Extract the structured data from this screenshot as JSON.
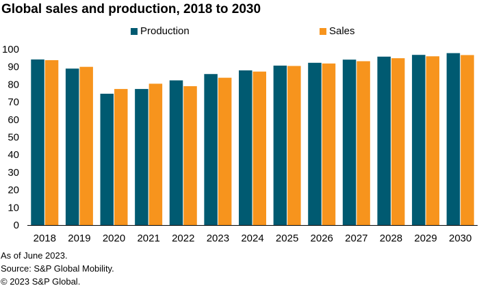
{
  "title": "Global sales and production, 2018 to 2030",
  "colors": {
    "production": "#005a71",
    "sales": "#f7941d",
    "axis": "#000000"
  },
  "chart_data": {
    "type": "bar",
    "categories": [
      "2018",
      "2019",
      "2020",
      "2021",
      "2022",
      "2023",
      "2024",
      "2025",
      "2026",
      "2027",
      "2028",
      "2029",
      "2030"
    ],
    "series": [
      {
        "name": "Production",
        "values": [
          94.2,
          89.0,
          74.7,
          77.4,
          82.3,
          85.9,
          88.0,
          90.7,
          92.3,
          94.1,
          95.8,
          96.8,
          97.8
        ]
      },
      {
        "name": "Sales",
        "values": [
          93.8,
          90.0,
          77.4,
          80.4,
          79.0,
          83.8,
          87.3,
          90.5,
          91.9,
          93.2,
          94.9,
          96.0,
          96.7
        ]
      }
    ],
    "ylim": [
      0,
      100
    ],
    "yticks": [
      "0",
      "10",
      "20",
      "30",
      "40",
      "50",
      "60",
      "70",
      "80",
      "90",
      "100"
    ],
    "legend": "top-center",
    "grid": false
  },
  "notes": [
    "As of June 2023.",
    "Source: S&P Global Mobility.",
    "© 2023 S&P Global."
  ]
}
